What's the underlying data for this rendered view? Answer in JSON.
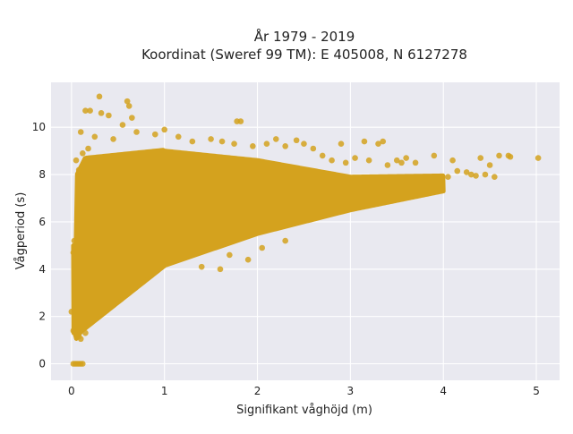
{
  "chart_data": {
    "type": "scatter",
    "title": "År 1979 - 2019",
    "subtitle": "Koordinat (Sweref 99 TM): E 405008, N 6127278",
    "xlabel": "Signifikant våghöjd (m)",
    "ylabel": "Vågperiod (s)",
    "xlim": [
      -0.22,
      5.25
    ],
    "ylim": [
      -0.7,
      11.9
    ],
    "xticks": [
      0,
      1,
      2,
      3,
      4,
      5
    ],
    "yticks": [
      0,
      2,
      4,
      6,
      8,
      10
    ],
    "grid": true,
    "legend": "none",
    "point_color": "#D4A21E",
    "background_color": "#E9E9F0",
    "series": [
      {
        "points": [
          [
            0.3,
            11.3
          ],
          [
            0.6,
            11.1
          ],
          [
            0.62,
            10.9
          ],
          [
            0.15,
            10.7
          ],
          [
            0.2,
            10.7
          ],
          [
            0.32,
            10.6
          ],
          [
            0.4,
            10.5
          ],
          [
            0.65,
            10.4
          ],
          [
            0.55,
            10.1
          ],
          [
            1.78,
            10.25
          ],
          [
            1.82,
            10.25
          ],
          [
            0.1,
            9.8
          ],
          [
            0.25,
            9.6
          ],
          [
            0.45,
            9.5
          ],
          [
            0.7,
            9.8
          ],
          [
            0.9,
            9.7
          ],
          [
            1.0,
            9.9
          ],
          [
            1.15,
            9.6
          ],
          [
            1.3,
            9.4
          ],
          [
            1.5,
            9.5
          ],
          [
            1.62,
            9.4
          ],
          [
            1.75,
            9.3
          ],
          [
            1.95,
            9.2
          ],
          [
            2.1,
            9.3
          ],
          [
            2.2,
            9.5
          ],
          [
            2.3,
            9.2
          ],
          [
            2.42,
            9.45
          ],
          [
            2.5,
            9.3
          ],
          [
            2.6,
            9.1
          ],
          [
            2.9,
            9.3
          ],
          [
            3.15,
            9.4
          ],
          [
            3.3,
            9.3
          ],
          [
            3.35,
            9.4
          ],
          [
            0.05,
            8.6
          ],
          [
            0.08,
            8.2
          ],
          [
            0.12,
            8.9
          ],
          [
            0.18,
            9.1
          ],
          [
            2.7,
            8.8
          ],
          [
            2.8,
            8.6
          ],
          [
            2.95,
            8.5
          ],
          [
            3.05,
            8.7
          ],
          [
            3.2,
            8.6
          ],
          [
            3.4,
            8.4
          ],
          [
            3.5,
            8.6
          ],
          [
            3.55,
            8.5
          ],
          [
            3.6,
            8.7
          ],
          [
            3.9,
            8.8
          ],
          [
            3.7,
            8.5
          ],
          [
            4.1,
            8.6
          ],
          [
            4.4,
            8.7
          ],
          [
            4.5,
            8.4
          ],
          [
            4.6,
            8.8
          ],
          [
            4.7,
            8.8
          ],
          [
            4.72,
            8.75
          ],
          [
            5.02,
            8.7
          ],
          [
            4.15,
            8.15
          ],
          [
            4.25,
            8.1
          ],
          [
            4.3,
            8.0
          ],
          [
            4.45,
            8.0
          ],
          [
            4.55,
            7.9
          ],
          [
            4.35,
            7.95
          ],
          [
            4.05,
            7.9
          ],
          [
            0.02,
            0
          ],
          [
            0.04,
            0
          ],
          [
            0.06,
            0
          ],
          [
            0.08,
            0
          ],
          [
            0.1,
            0
          ],
          [
            0.12,
            0
          ],
          [
            0.02,
            1.4
          ],
          [
            0.05,
            1.2
          ],
          [
            0.1,
            1.05
          ],
          [
            0.08,
            1.15
          ],
          [
            0.15,
            1.3
          ],
          [
            0.0,
            2.2
          ],
          [
            0.02,
            4.7
          ],
          [
            0.03,
            5.2
          ],
          [
            1.9,
            4.4
          ],
          [
            1.7,
            4.6
          ],
          [
            2.05,
            4.9
          ],
          [
            2.3,
            5.2
          ],
          [
            1.6,
            4.0
          ],
          [
            1.4,
            4.1
          ]
        ]
      }
    ]
  }
}
